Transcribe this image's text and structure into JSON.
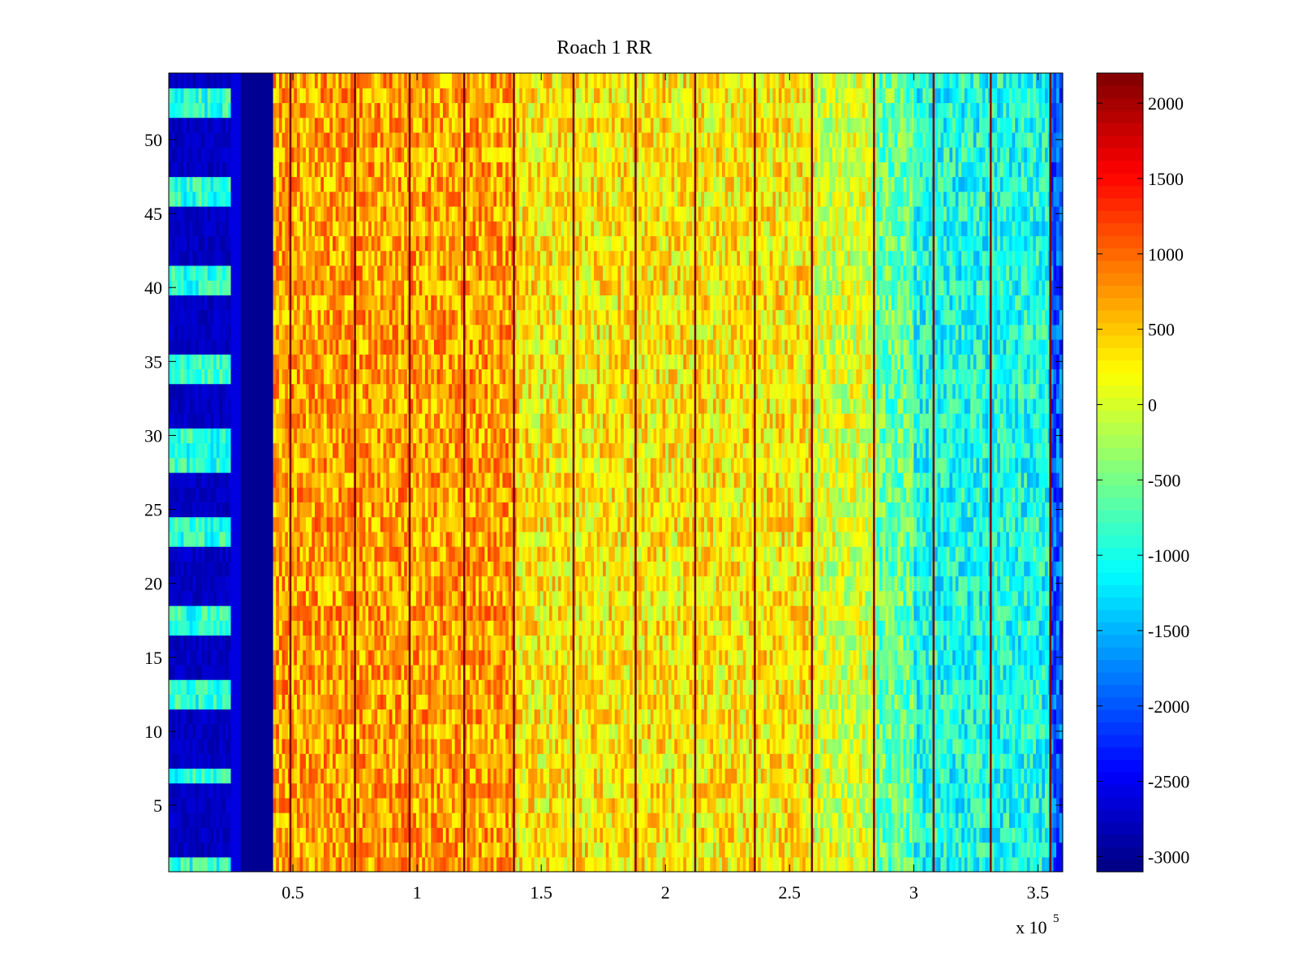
{
  "chart_data": {
    "type": "heatmap",
    "title": "Roach 1 RR",
    "xlabel": "",
    "ylabel": "",
    "x_multiplier_label": {
      "base": "x 10",
      "exponent": "5"
    },
    "xlim": [
      0,
      3.6
    ],
    "ylim": [
      0.5,
      54.5
    ],
    "x_ticks": [
      0.5,
      1,
      1.5,
      2,
      2.5,
      3,
      3.5
    ],
    "x_tick_labels": [
      "0.5",
      "1",
      "1.5",
      "2",
      "2.5",
      "3",
      "3.5"
    ],
    "y_ticks": [
      5,
      10,
      15,
      20,
      25,
      30,
      35,
      40,
      45,
      50
    ],
    "y_tick_labels": [
      "5",
      "10",
      "15",
      "20",
      "25",
      "30",
      "35",
      "40",
      "45",
      "50"
    ],
    "rows": 54,
    "colorbar": {
      "colormap": "jet",
      "clim": [
        -3100,
        2200
      ],
      "ticks": [
        2000,
        1500,
        1000,
        500,
        0,
        -500,
        -1000,
        -1500,
        -2000,
        -2500,
        -3000
      ],
      "tick_labels": [
        "2000",
        "1500",
        "1000",
        "500",
        "0",
        "-500",
        "-1000",
        "-1500",
        "-2000",
        "-2500",
        "-3000"
      ]
    },
    "regions": [
      {
        "x_range": [
          0,
          0.25
        ],
        "description": "alternating row bands",
        "low_rows_value": -2900,
        "high_rows_value": -900
      },
      {
        "x_range": [
          0.25,
          0.29
        ],
        "value": -2600
      },
      {
        "x_range": [
          0.29,
          0.42
        ],
        "value": -3000
      },
      {
        "x_range": [
          0.42,
          1.4
        ],
        "mean_value": 700
      },
      {
        "x_range": [
          1.4,
          2.6
        ],
        "mean_value": 300
      },
      {
        "x_range": [
          2.6,
          2.85
        ],
        "mean_value": 0
      },
      {
        "x_range": [
          2.85,
          3.0
        ],
        "mean_value": -600
      },
      {
        "x_range": [
          3.0,
          3.55
        ],
        "mean_value": -1000
      },
      {
        "x_range": [
          3.55,
          3.6
        ],
        "mean_value": -2000
      }
    ],
    "vertical_lines": {
      "x": [
        0.49,
        0.75,
        0.97,
        1.19,
        1.39,
        1.63,
        1.88,
        2.12,
        2.36,
        2.59,
        2.84,
        3.08,
        3.31,
        3.55
      ],
      "value": 2200
    },
    "high_rows_leftmost_band": [
      1,
      7,
      12,
      13,
      17,
      18,
      23,
      24,
      28,
      29,
      30,
      34,
      35,
      40,
      41,
      46,
      47,
      52,
      53
    ]
  }
}
